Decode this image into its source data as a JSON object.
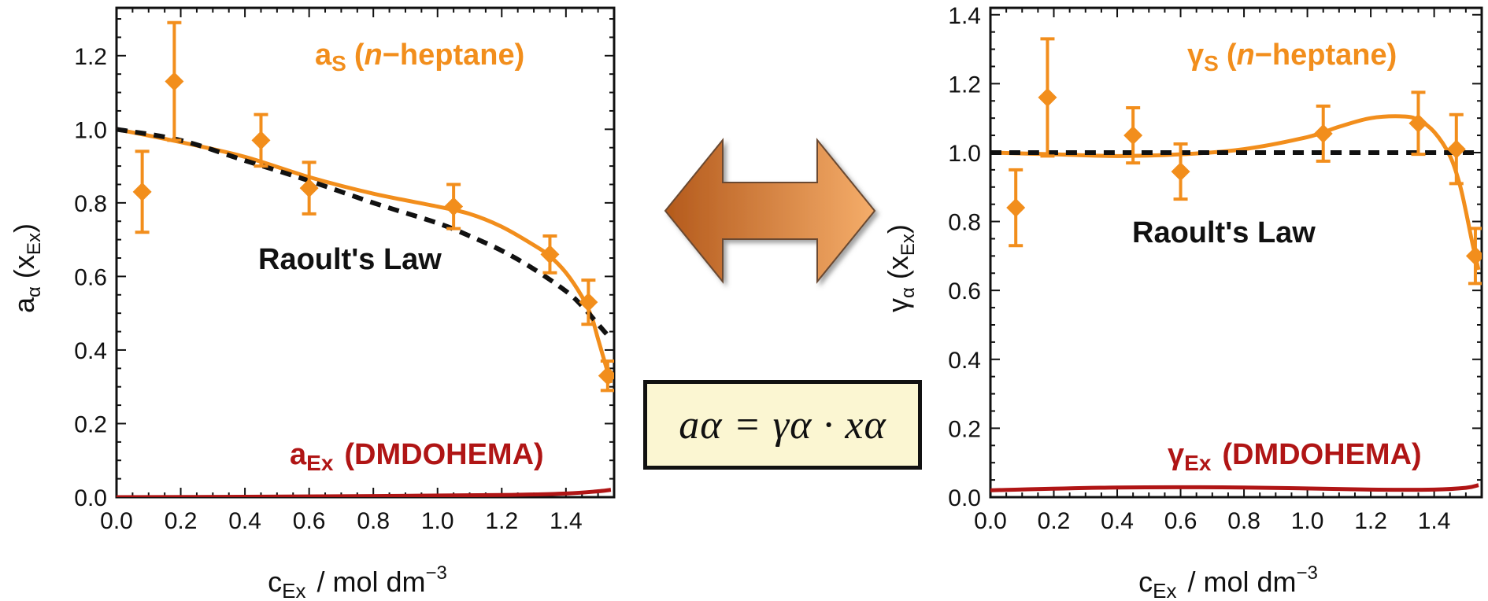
{
  "colors": {
    "solvent": "#f28e1c",
    "extractant": "#b01515",
    "raoult": "#111111",
    "arrow_dark": "#b45a1c",
    "arrow_light": "#f5ad6a",
    "box_fill": "#fbf6d2"
  },
  "equation": "aα = γα · xα",
  "chart_data": [
    {
      "type": "scatter",
      "xlim": [
        0.0,
        1.55
      ],
      "ylim": [
        0.0,
        1.33
      ],
      "x_ticks": [
        "0.0",
        "0.2",
        "0.4",
        "0.6",
        "0.8",
        "1.0",
        "1.2",
        "1.4"
      ],
      "y_ticks": [
        "0.0",
        "0.2",
        "0.4",
        "0.6",
        "0.8",
        "1.0",
        "1.2"
      ],
      "xlabel": {
        "main": "c",
        "sub": "Ex",
        "unit": "/ mol dm",
        "sup": "−3"
      },
      "ylabel": {
        "main": "a",
        "sub": "α",
        "paren": "(x",
        "psub": "Ex",
        "close": ")"
      },
      "raoult_label": "Raoult's Law",
      "solvent_label": {
        "main": "a",
        "sub": "S",
        "open": "(",
        "italic": "n",
        "rest": "−heptane)"
      },
      "extractant_label": {
        "main": "a",
        "sub": "Ex",
        "rest": "(DMDOHEMA)"
      },
      "series": [
        {
          "name": "a_S (n-heptane) data",
          "x": [
            0.08,
            0.18,
            0.45,
            0.6,
            1.05,
            1.35,
            1.47,
            1.53
          ],
          "y": [
            0.83,
            1.13,
            0.97,
            0.84,
            0.79,
            0.66,
            0.53,
            0.33
          ],
          "err": [
            0.11,
            0.16,
            0.07,
            0.07,
            0.06,
            0.05,
            0.06,
            0.04
          ]
        },
        {
          "name": "a_S fit",
          "x": [
            0.0,
            0.2,
            0.4,
            0.6,
            0.8,
            1.0,
            1.1,
            1.2,
            1.3,
            1.35,
            1.4,
            1.45,
            1.48,
            1.5,
            1.52,
            1.54
          ],
          "y": [
            1.0,
            0.965,
            0.925,
            0.87,
            0.825,
            0.79,
            0.77,
            0.735,
            0.685,
            0.655,
            0.61,
            0.545,
            0.49,
            0.43,
            0.37,
            0.31
          ]
        },
        {
          "name": "Raoult's Law",
          "x": [
            0.0,
            0.2,
            0.4,
            0.6,
            0.8,
            1.0,
            1.1,
            1.2,
            1.3,
            1.4,
            1.45,
            1.5,
            1.53
          ],
          "y": [
            1.0,
            0.97,
            0.915,
            0.86,
            0.8,
            0.745,
            0.71,
            0.67,
            0.62,
            0.56,
            0.52,
            0.47,
            0.44
          ]
        },
        {
          "name": "a_Ex (DMDOHEMA)",
          "x": [
            0.0,
            0.4,
            0.8,
            1.2,
            1.4,
            1.5,
            1.54
          ],
          "y": [
            0.0,
            0.001,
            0.003,
            0.006,
            0.01,
            0.016,
            0.02
          ]
        }
      ]
    },
    {
      "type": "scatter",
      "xlim": [
        0.0,
        1.55
      ],
      "ylim": [
        0.0,
        1.42
      ],
      "x_ticks": [
        "0.0",
        "0.2",
        "0.4",
        "0.6",
        "0.8",
        "1.0",
        "1.2",
        "1.4"
      ],
      "y_ticks": [
        "0.0",
        "0.2",
        "0.4",
        "0.6",
        "0.8",
        "1.0",
        "1.2",
        "1.4"
      ],
      "xlabel": {
        "main": "c",
        "sub": "Ex",
        "unit": "/  mol dm",
        "sup": "−3"
      },
      "ylabel": {
        "main": "γ",
        "sub": "α",
        "paren": "(x",
        "psub": "Ex",
        "close": ")"
      },
      "raoult_label": "Raoult's Law",
      "solvent_label": {
        "main": "γ",
        "sub": "S",
        "open": "(",
        "italic": "n",
        "rest": "−heptane)"
      },
      "extractant_label": {
        "main": "γ",
        "sub": "Ex",
        "rest": "(DMDOHEMA)"
      },
      "series": [
        {
          "name": "γ_S (n-heptane) data",
          "x": [
            0.08,
            0.18,
            0.45,
            0.6,
            1.05,
            1.35,
            1.47,
            1.53
          ],
          "y": [
            0.84,
            1.16,
            1.05,
            0.945,
            1.055,
            1.085,
            1.01,
            0.7
          ],
          "err": [
            0.11,
            0.17,
            0.08,
            0.08,
            0.08,
            0.09,
            0.1,
            0.08
          ]
        },
        {
          "name": "γ_S fit",
          "x": [
            0.0,
            0.2,
            0.4,
            0.6,
            0.8,
            1.0,
            1.1,
            1.2,
            1.3,
            1.35,
            1.4,
            1.45,
            1.48,
            1.5,
            1.52,
            1.54
          ],
          "y": [
            1.0,
            0.995,
            0.99,
            0.995,
            1.01,
            1.045,
            1.075,
            1.1,
            1.105,
            1.095,
            1.06,
            0.99,
            0.91,
            0.83,
            0.74,
            0.66
          ]
        },
        {
          "name": "Raoult's Law",
          "x": [
            0.0,
            1.55
          ],
          "y": [
            1.0,
            1.0
          ]
        },
        {
          "name": "γ_Ex (DMDOHEMA)",
          "x": [
            0.0,
            0.4,
            0.8,
            1.2,
            1.4,
            1.5,
            1.54
          ],
          "y": [
            0.02,
            0.028,
            0.028,
            0.022,
            0.022,
            0.027,
            0.035
          ]
        }
      ]
    }
  ]
}
